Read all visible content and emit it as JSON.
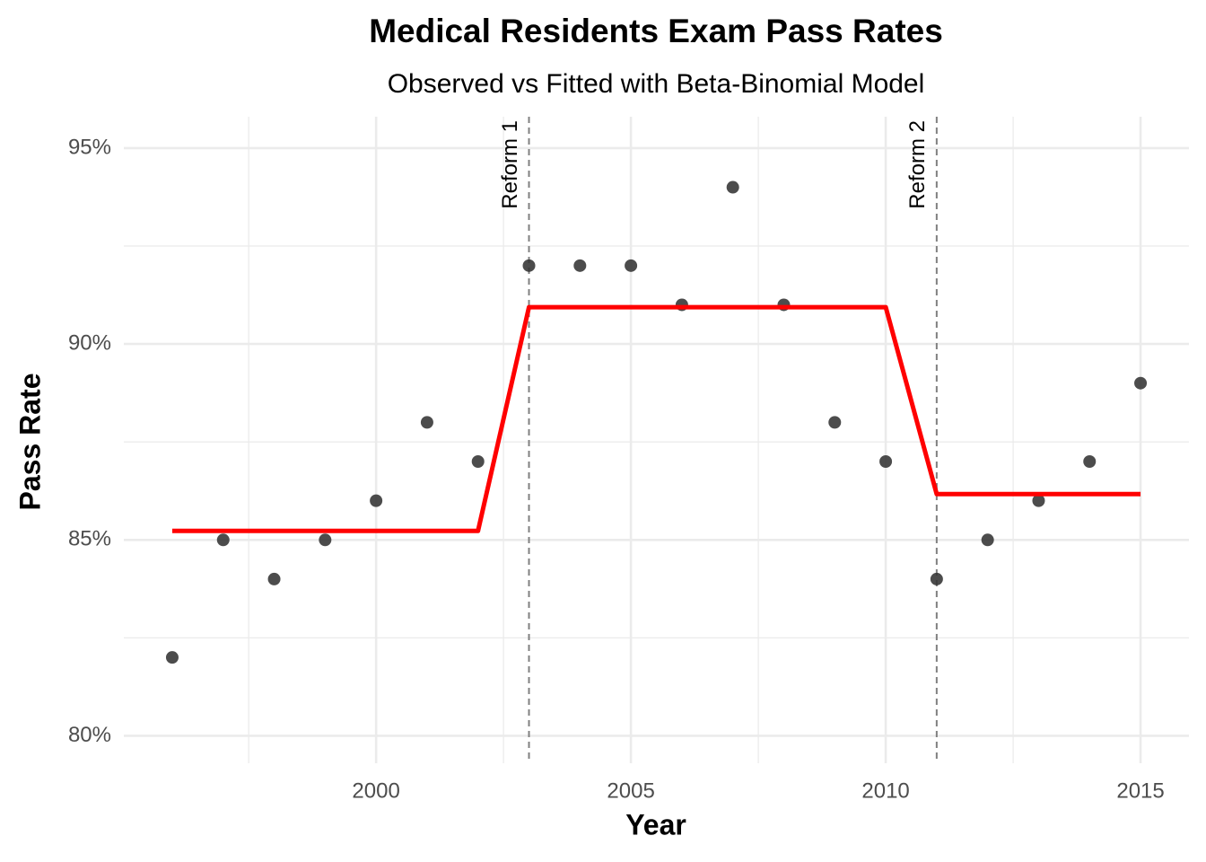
{
  "chart_data": {
    "type": "scatter",
    "title": "Medical Residents Exam Pass Rates",
    "subtitle": "Observed vs Fitted with Beta-Binomial Model",
    "x_label": "Year",
    "y_label": "Pass Rate",
    "x": [
      1996,
      1997,
      1998,
      1999,
      2000,
      2001,
      2002,
      2003,
      2004,
      2005,
      2006,
      2007,
      2008,
      2009,
      2010,
      2011,
      2012,
      2013,
      2014,
      2015
    ],
    "series": [
      {
        "type": "scatter",
        "color": "#333333",
        "values": [
          82,
          85,
          84,
          85,
          86,
          88,
          87,
          92,
          92,
          92,
          91,
          94,
          91,
          88,
          87,
          84,
          85,
          86,
          87,
          89
        ]
      },
      {
        "type": "line",
        "color": "#ff0000",
        "values": [
          85.23,
          85.23,
          85.23,
          85.23,
          85.23,
          85.23,
          85.23,
          90.94,
          90.94,
          90.94,
          90.94,
          90.94,
          90.94,
          90.94,
          90.94,
          86.17,
          86.17,
          86.17,
          86.17,
          86.17
        ]
      }
    ],
    "xlim": [
      1995.05,
      2015.95
    ],
    "xticks": [
      2000,
      2005,
      2010,
      2015
    ],
    "x_minor_ticks": [
      1997.5,
      2002.5,
      2007.5,
      2012.5
    ],
    "ylim": [
      79.3,
      95.8
    ],
    "yticks": [
      {
        "value": 80,
        "label": "80%"
      },
      {
        "value": 85,
        "label": "85%"
      },
      {
        "value": 90,
        "label": "90%"
      },
      {
        "value": 95,
        "label": "95%"
      }
    ],
    "y_minor_ticks": [
      82.5,
      87.5,
      92.5
    ],
    "annotations": [
      {
        "x": 2003,
        "label": "Reform 1"
      },
      {
        "x": 2011,
        "label": "Reform 2"
      }
    ],
    "grid": true
  }
}
